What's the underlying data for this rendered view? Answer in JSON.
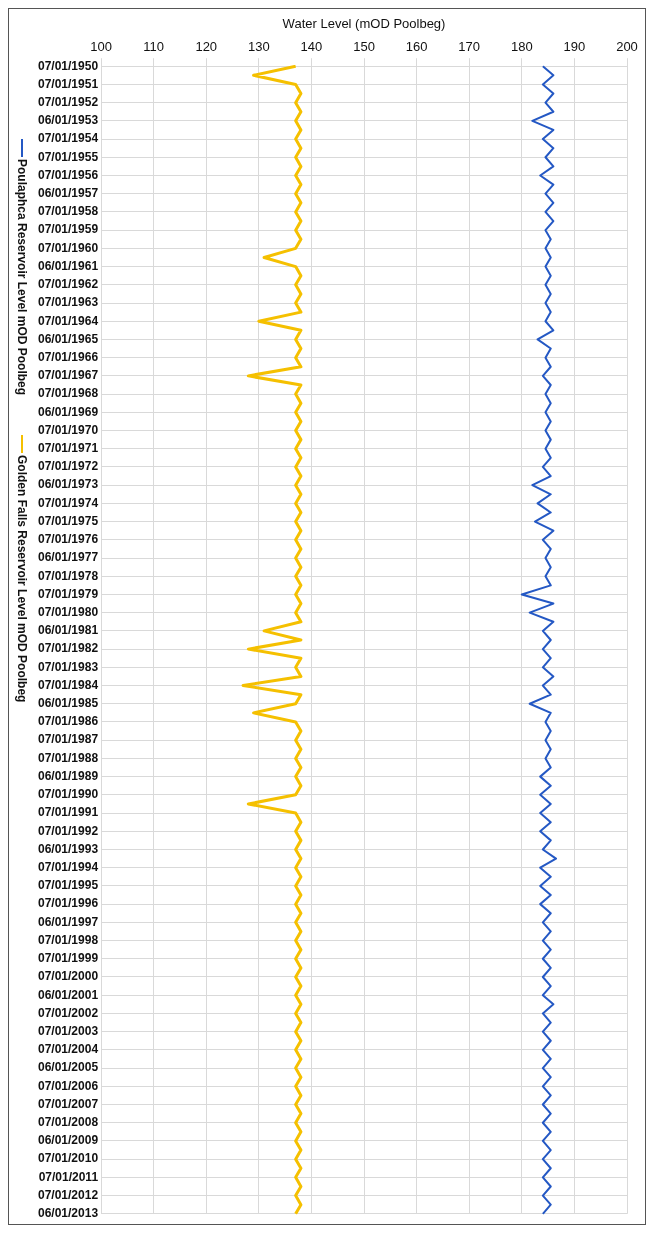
{
  "chart_data": {
    "type": "line",
    "orientation": "horizontal",
    "xlabel": "Water Level (mOD Poolbeg)",
    "xlim": [
      100,
      200
    ],
    "xticks": [
      100,
      110,
      120,
      130,
      140,
      150,
      160,
      170,
      180,
      190,
      200
    ],
    "grid": true,
    "legend": "left",
    "marker": "none",
    "categories": [
      "07/01/1950",
      null,
      "07/01/1951",
      null,
      "07/01/1952",
      null,
      "06/01/1953",
      null,
      "07/01/1954",
      null,
      "07/01/1955",
      null,
      "07/01/1956",
      null,
      "06/01/1957",
      null,
      "07/01/1958",
      null,
      "07/01/1959",
      null,
      "07/01/1960",
      null,
      "06/01/1961",
      null,
      "07/01/1962",
      null,
      "07/01/1963",
      null,
      "07/01/1964",
      null,
      "06/01/1965",
      null,
      "07/01/1966",
      null,
      "07/01/1967",
      null,
      "07/01/1968",
      null,
      "06/01/1969",
      null,
      "07/01/1970",
      null,
      "07/01/1971",
      null,
      "07/01/1972",
      null,
      "06/01/1973",
      null,
      "07/01/1974",
      null,
      "07/01/1975",
      null,
      "07/01/1976",
      null,
      "06/01/1977",
      null,
      "07/01/1978",
      null,
      "07/01/1979",
      null,
      "07/01/1980",
      null,
      "06/01/1981",
      null,
      "07/01/1982",
      null,
      "07/01/1983",
      null,
      "07/01/1984",
      null,
      "06/01/1985",
      null,
      "07/01/1986",
      null,
      "07/01/1987",
      null,
      "07/01/1988",
      null,
      "06/01/1989",
      null,
      "07/01/1990",
      null,
      "07/01/1991",
      null,
      "07/01/1992",
      null,
      "06/01/1993",
      null,
      "07/01/1994",
      null,
      "07/01/1995",
      null,
      "07/01/1996",
      null,
      "06/01/1997",
      null,
      "07/01/1998",
      null,
      "07/01/1999",
      null,
      "07/01/2000",
      null,
      "06/01/2001",
      null,
      "07/01/2002",
      null,
      "07/01/2003",
      null,
      "07/01/2004",
      null,
      "06/01/2005",
      null,
      "07/01/2006",
      null,
      "07/01/2007",
      null,
      "07/01/2008",
      null,
      "06/01/2009",
      null,
      "07/01/2010",
      null,
      "07/01/2011",
      null,
      "07/01/2012",
      null,
      "06/01/2013"
    ],
    "series": [
      {
        "name": "Poulaphca Reservoir Level mOD Poolbeg",
        "color": "#2458c4",
        "values": [
          184,
          186,
          184,
          186,
          184.5,
          186,
          182,
          186,
          184,
          186,
          184.5,
          186,
          183.5,
          186,
          184.5,
          186,
          184.5,
          186,
          184.5,
          185.5,
          184.5,
          185.5,
          184.5,
          185.5,
          184.5,
          185.5,
          184.5,
          185.5,
          184.5,
          186,
          183,
          185.5,
          184.5,
          185.5,
          184,
          185.5,
          184.5,
          185.5,
          184.5,
          185.5,
          184.5,
          185.5,
          184.5,
          185.5,
          184,
          185.5,
          182,
          185.5,
          183,
          185.5,
          182.5,
          186,
          184,
          185.5,
          184.5,
          185.5,
          184.5,
          185.5,
          180,
          186,
          181.5,
          186,
          184,
          185.5,
          184,
          185.5,
          184,
          186,
          184,
          185.5,
          181.5,
          185.5,
          184.5,
          185.5,
          184.5,
          185.5,
          184.5,
          185.5,
          183.5,
          185.5,
          183.5,
          185.5,
          183.5,
          185.5,
          183.5,
          185.5,
          184,
          186.5,
          183.5,
          185.5,
          183.5,
          185.5,
          183.5,
          185.5,
          184,
          185.5,
          184,
          185.5,
          184,
          185.5,
          184,
          185.5,
          184,
          186,
          184,
          185.5,
          184,
          185.5,
          184,
          185.5,
          184,
          185.5,
          184,
          185.5,
          184,
          185.5,
          184,
          185.5,
          184,
          185.5,
          184,
          185.5,
          184,
          185.5,
          184,
          185.5,
          184
        ]
      },
      {
        "name": "Golden Falls Reservoir Level mOD Poolbeg",
        "color": "#f5c000",
        "values": [
          137,
          129,
          137,
          138,
          137,
          138,
          137,
          138,
          137,
          138,
          137,
          138,
          137,
          138,
          137,
          138,
          137,
          138,
          137,
          138,
          137,
          131,
          137,
          138,
          137,
          138,
          137,
          138,
          130,
          138,
          137,
          138,
          137,
          138,
          128,
          138,
          137,
          138,
          137,
          138,
          137,
          138,
          137,
          138,
          137,
          138,
          137,
          138,
          137,
          138,
          137,
          138,
          137,
          138,
          137,
          138,
          137,
          138,
          137,
          138,
          137,
          138,
          131,
          138,
          128,
          138,
          137,
          138,
          127,
          138,
          137,
          129,
          137,
          138,
          137,
          138,
          137,
          138,
          137,
          138,
          137,
          128,
          137,
          138,
          137,
          138,
          137,
          138,
          137,
          138,
          137,
          138,
          137,
          138,
          137,
          138,
          137,
          138,
          137,
          138,
          137,
          138,
          137,
          138,
          137,
          138,
          137,
          138,
          137,
          138,
          137,
          138,
          137,
          138,
          137,
          138,
          137,
          138,
          137,
          138,
          137,
          138,
          137,
          138,
          137,
          138,
          137
        ]
      }
    ]
  }
}
